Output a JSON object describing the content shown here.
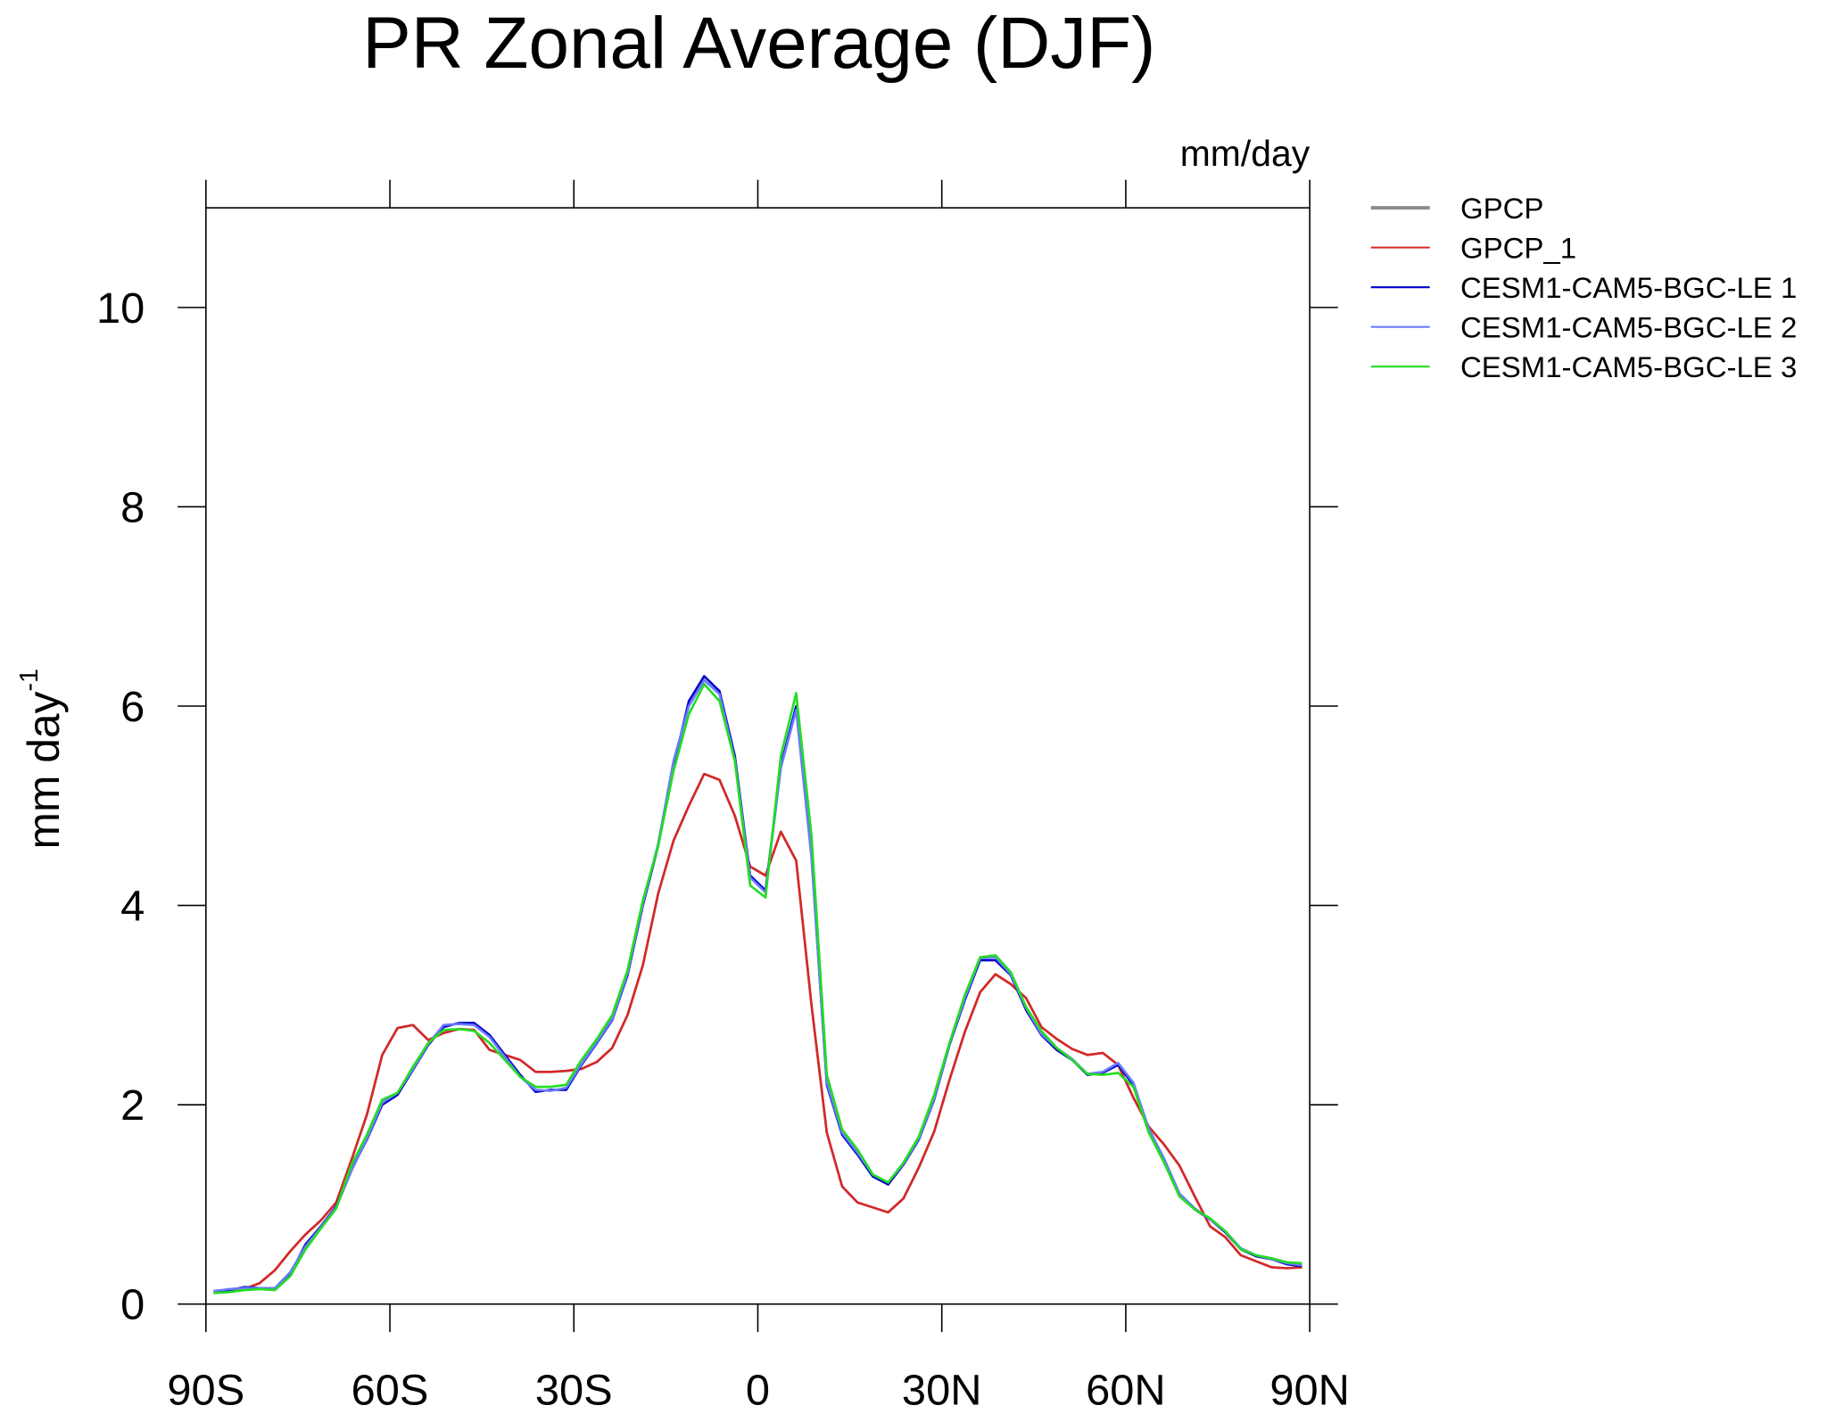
{
  "chart_data": {
    "type": "line",
    "title": "PR Zonal Average (DJF)",
    "units_label": "mm/day",
    "y_label": {
      "text": "mm day",
      "superscript": "-1"
    },
    "x": [
      -88.75,
      -86.25,
      -83.75,
      -81.25,
      -78.75,
      -76.25,
      -73.75,
      -71.25,
      -68.75,
      -66.25,
      -63.75,
      -61.25,
      -58.75,
      -56.25,
      -53.75,
      -51.25,
      -48.75,
      -46.25,
      -43.75,
      -41.25,
      -38.75,
      -36.25,
      -33.75,
      -31.25,
      -28.75,
      -26.25,
      -23.75,
      -21.25,
      -18.75,
      -16.25,
      -13.75,
      -11.25,
      -8.75,
      -6.25,
      -3.75,
      -1.25,
      1.25,
      3.75,
      6.25,
      8.75,
      11.25,
      13.75,
      16.25,
      18.75,
      21.25,
      23.75,
      26.25,
      28.75,
      31.25,
      33.75,
      36.25,
      38.75,
      41.25,
      43.75,
      46.25,
      48.75,
      51.25,
      53.75,
      56.25,
      58.75,
      61.25,
      63.75,
      66.25,
      68.75,
      71.25,
      73.75,
      76.25,
      78.75,
      81.25,
      83.75,
      86.25,
      88.75
    ],
    "xlim": [
      -90,
      90
    ],
    "xticks": [
      {
        "value": -90,
        "label": "90S"
      },
      {
        "value": -60,
        "label": "60S"
      },
      {
        "value": -30,
        "label": "30S"
      },
      0,
      {
        "value": 30,
        "label": "30N"
      },
      {
        "value": 60,
        "label": "60N"
      },
      {
        "value": 90,
        "label": "90N"
      }
    ],
    "ylim": [
      0,
      11
    ],
    "yticks": [
      0,
      2,
      4,
      6,
      8,
      10
    ],
    "grid": false,
    "legend": "outside-right",
    "series": [
      {
        "name": "GPCP",
        "color": "#8c8c8c",
        "values": [
          0.12,
          0.14,
          0.15,
          0.21,
          0.34,
          0.53,
          0.7,
          0.84,
          1.02,
          1.45,
          1.9,
          2.5,
          2.77,
          2.8,
          2.65,
          2.72,
          2.76,
          2.75,
          2.55,
          2.5,
          2.45,
          2.33,
          2.33,
          2.34,
          2.36,
          2.43,
          2.57,
          2.9,
          3.4,
          4.12,
          4.65,
          5.0,
          5.32,
          5.26,
          4.9,
          4.39,
          4.3,
          4.74,
          4.45,
          3.0,
          1.72,
          1.18,
          1.02,
          0.97,
          0.92,
          1.06,
          1.37,
          1.73,
          2.25,
          2.73,
          3.13,
          3.31,
          3.21,
          3.07,
          2.78,
          2.66,
          2.56,
          2.5,
          2.52,
          2.4,
          2.07,
          1.78,
          1.6,
          1.39,
          1.08,
          0.78,
          0.67,
          0.49,
          0.43,
          0.37,
          0.36,
          0.37
        ]
      },
      {
        "name": "GPCP_1",
        "color": "#d62728",
        "values": [
          0.12,
          0.14,
          0.15,
          0.21,
          0.34,
          0.53,
          0.7,
          0.84,
          1.02,
          1.45,
          1.9,
          2.5,
          2.77,
          2.8,
          2.65,
          2.72,
          2.76,
          2.75,
          2.55,
          2.5,
          2.45,
          2.33,
          2.33,
          2.34,
          2.36,
          2.43,
          2.57,
          2.9,
          3.4,
          4.12,
          4.65,
          5.0,
          5.32,
          5.26,
          4.9,
          4.39,
          4.3,
          4.74,
          4.45,
          3.0,
          1.72,
          1.18,
          1.02,
          0.97,
          0.92,
          1.06,
          1.37,
          1.73,
          2.25,
          2.73,
          3.13,
          3.31,
          3.21,
          3.07,
          2.78,
          2.66,
          2.56,
          2.5,
          2.52,
          2.4,
          2.07,
          1.78,
          1.6,
          1.39,
          1.08,
          0.78,
          0.67,
          0.49,
          0.43,
          0.37,
          0.36,
          0.37
        ]
      },
      {
        "name": "CESM1-CAM5-BGC-LE 1",
        "color": "#0000c8",
        "values": [
          0.13,
          0.14,
          0.17,
          0.16,
          0.15,
          0.3,
          0.6,
          0.78,
          0.98,
          1.35,
          1.65,
          2.0,
          2.1,
          2.35,
          2.6,
          2.78,
          2.82,
          2.82,
          2.7,
          2.5,
          2.3,
          2.13,
          2.15,
          2.15,
          2.4,
          2.62,
          2.85,
          3.3,
          4.0,
          4.6,
          5.4,
          6.05,
          6.3,
          6.15,
          5.5,
          4.3,
          4.15,
          5.4,
          6.0,
          4.5,
          2.2,
          1.7,
          1.5,
          1.28,
          1.2,
          1.4,
          1.65,
          2.05,
          2.6,
          3.05,
          3.45,
          3.45,
          3.3,
          2.95,
          2.7,
          2.55,
          2.45,
          2.3,
          2.32,
          2.4,
          2.2,
          1.75,
          1.45,
          1.1,
          0.95,
          0.85,
          0.72,
          0.55,
          0.48,
          0.45,
          0.4,
          0.38
        ]
      },
      {
        "name": "CESM1-CAM5-BGC-LE 2",
        "color": "#6b7bff",
        "values": [
          0.13,
          0.15,
          0.16,
          0.16,
          0.16,
          0.32,
          0.58,
          0.77,
          0.97,
          1.34,
          1.66,
          2.02,
          2.12,
          2.36,
          2.61,
          2.8,
          2.81,
          2.8,
          2.68,
          2.48,
          2.28,
          2.15,
          2.14,
          2.17,
          2.41,
          2.63,
          2.86,
          3.32,
          4.02,
          4.62,
          5.45,
          6.0,
          6.26,
          6.12,
          5.46,
          4.28,
          4.13,
          5.38,
          5.96,
          4.48,
          2.22,
          1.72,
          1.52,
          1.3,
          1.22,
          1.41,
          1.66,
          2.06,
          2.61,
          3.07,
          3.47,
          3.48,
          3.31,
          2.97,
          2.71,
          2.57,
          2.46,
          2.31,
          2.33,
          2.42,
          2.22,
          1.76,
          1.46,
          1.11,
          0.96,
          0.85,
          0.73,
          0.56,
          0.49,
          0.45,
          0.41,
          0.39
        ]
      },
      {
        "name": "CESM1-CAM5-BGC-LE 3",
        "color": "#22dd22",
        "values": [
          0.11,
          0.12,
          0.14,
          0.15,
          0.14,
          0.28,
          0.55,
          0.76,
          0.96,
          1.4,
          1.7,
          2.05,
          2.12,
          2.38,
          2.62,
          2.75,
          2.76,
          2.74,
          2.62,
          2.45,
          2.28,
          2.18,
          2.18,
          2.2,
          2.45,
          2.66,
          2.9,
          3.35,
          4.05,
          4.6,
          5.35,
          5.92,
          6.22,
          6.05,
          5.45,
          4.2,
          4.08,
          5.5,
          6.13,
          4.7,
          2.3,
          1.75,
          1.55,
          1.3,
          1.22,
          1.42,
          1.68,
          2.1,
          2.62,
          3.1,
          3.48,
          3.5,
          3.33,
          2.98,
          2.74,
          2.57,
          2.45,
          2.31,
          2.3,
          2.32,
          2.18,
          1.72,
          1.42,
          1.08,
          0.95,
          0.86,
          0.73,
          0.55,
          0.49,
          0.46,
          0.42,
          0.41
        ]
      }
    ]
  }
}
